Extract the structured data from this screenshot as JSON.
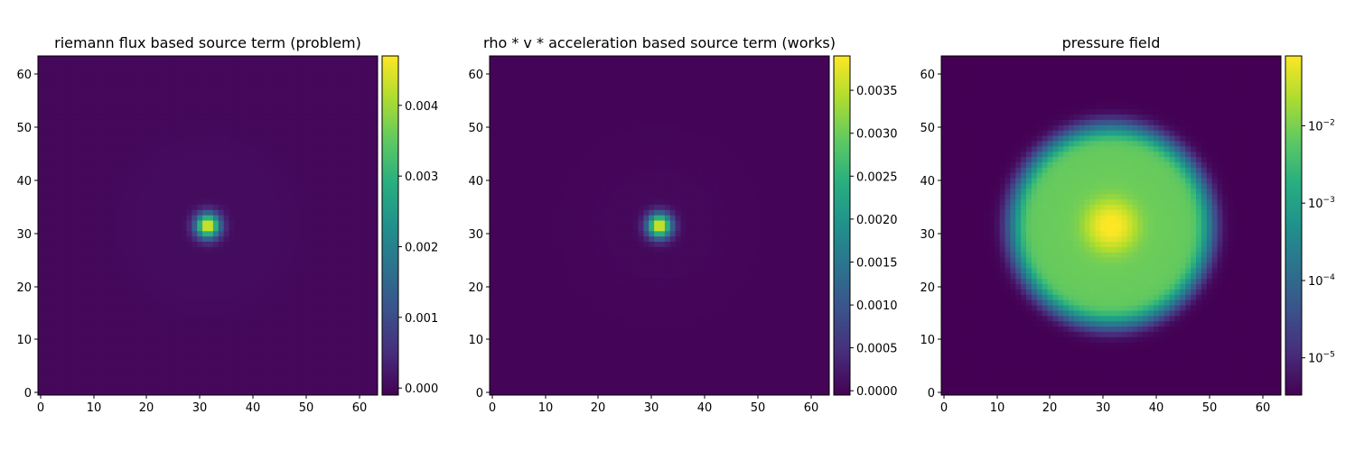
{
  "chart_data": [
    {
      "type": "heatmap",
      "title": "riemann flux based source term (problem)",
      "xlim": [
        -0.5,
        63.5
      ],
      "ylim": [
        -0.5,
        63.5
      ],
      "xticks": [
        "0",
        "10",
        "20",
        "30",
        "40",
        "50",
        "60"
      ],
      "yticks": [
        "0",
        "10",
        "20",
        "30",
        "40",
        "50",
        "60"
      ],
      "colormap": "viridis",
      "color_scale": "linear",
      "vmin": -0.0001,
      "vmax": 0.0047,
      "colorbar_ticks": [
        {
          "value": 0.0,
          "label": "0.000"
        },
        {
          "value": 0.001,
          "label": "0.001"
        },
        {
          "value": 0.002,
          "label": "0.002"
        },
        {
          "value": 0.003,
          "label": "0.003"
        },
        {
          "value": 0.004,
          "label": "0.004"
        }
      ],
      "field": {
        "shape": "gaussian_source",
        "center": [
          31.5,
          31.5
        ],
        "peak": 0.0047,
        "width": 1.6,
        "halo": 5e-05,
        "halo_radius": 15
      }
    },
    {
      "type": "heatmap",
      "title": "rho * v * acceleration based source term (works)",
      "xlim": [
        -0.5,
        63.5
      ],
      "ylim": [
        -0.5,
        63.5
      ],
      "xticks": [
        "0",
        "10",
        "20",
        "30",
        "40",
        "50",
        "60"
      ],
      "yticks": [
        "0",
        "10",
        "20",
        "30",
        "40",
        "50",
        "60"
      ],
      "colormap": "viridis",
      "color_scale": "linear",
      "vmin": -5e-05,
      "vmax": 0.0039,
      "colorbar_ticks": [
        {
          "value": 0.0,
          "label": "0.0000"
        },
        {
          "value": 0.0005,
          "label": "0.0005"
        },
        {
          "value": 0.001,
          "label": "0.0010"
        },
        {
          "value": 0.0015,
          "label": "0.0015"
        },
        {
          "value": 0.002,
          "label": "0.0020"
        },
        {
          "value": 0.0025,
          "label": "0.0025"
        },
        {
          "value": 0.003,
          "label": "0.0030"
        },
        {
          "value": 0.0035,
          "label": "0.0035"
        }
      ],
      "field": {
        "shape": "gaussian_source",
        "center": [
          31.5,
          31.5
        ],
        "peak": 0.0039,
        "width": 1.6,
        "halo": 3e-05,
        "halo_radius": 12
      }
    },
    {
      "type": "heatmap",
      "title": "pressure field",
      "xlim": [
        -0.5,
        63.5
      ],
      "ylim": [
        -0.5,
        63.5
      ],
      "xticks": [
        "0",
        "10",
        "20",
        "30",
        "40",
        "50",
        "60"
      ],
      "yticks": [
        "0",
        "10",
        "20",
        "30",
        "40",
        "50",
        "60"
      ],
      "colormap": "viridis",
      "color_scale": "log",
      "vmin": 3.3e-06,
      "vmax": 0.08,
      "colorbar_ticks": [
        {
          "value": 1e-05,
          "base": "10",
          "exp": "−5"
        },
        {
          "value": 0.0001,
          "base": "10",
          "exp": "−4"
        },
        {
          "value": 0.001,
          "base": "10",
          "exp": "−3"
        },
        {
          "value": 0.01,
          "base": "10",
          "exp": "−2"
        }
      ],
      "field": {
        "shape": "blast_disk",
        "center": [
          31.5,
          31.5
        ],
        "radius": 16.4,
        "background": 3.3e-06,
        "inside": 0.007,
        "peak": 0.08,
        "core_width": 2.5
      }
    }
  ]
}
